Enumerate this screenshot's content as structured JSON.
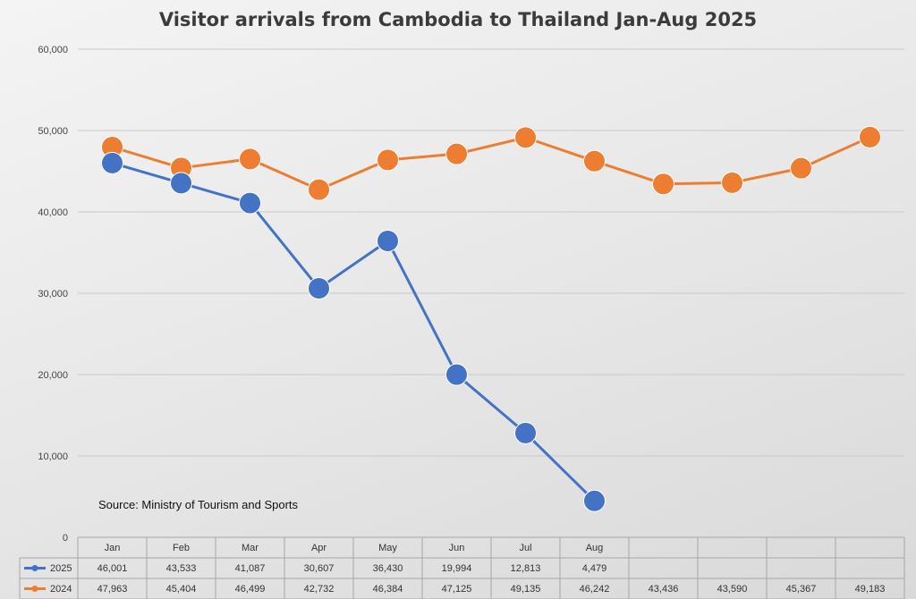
{
  "chart_data": {
    "type": "line",
    "title": "Visitor arrivals from Cambodia to Thailand Jan-Aug 2025",
    "categories": [
      "Jan",
      "Feb",
      "Mar",
      "Apr",
      "May",
      "Jun",
      "Jul",
      "Aug",
      "",
      "",
      "",
      ""
    ],
    "series": [
      {
        "name": "2025",
        "color": "#4472c4",
        "values": [
          46001,
          43533,
          41087,
          30607,
          36430,
          19994,
          12813,
          4479,
          null,
          null,
          null,
          null
        ],
        "labels": [
          "46,001",
          "43,533",
          "41,087",
          "30,607",
          "36,430",
          "19,994",
          "12,813",
          "4,479",
          "",
          "",
          "",
          ""
        ]
      },
      {
        "name": "2024",
        "color": "#ed7d31",
        "values": [
          47963,
          45404,
          46499,
          42732,
          46384,
          47125,
          49135,
          46242,
          43436,
          43590,
          45367,
          49183
        ],
        "labels": [
          "47,963",
          "45,404",
          "46,499",
          "42,732",
          "46,384",
          "47,125",
          "49,135",
          "46,242",
          "43,436",
          "43,590",
          "45,367",
          "49,183"
        ]
      }
    ],
    "ylim": [
      0,
      60000
    ],
    "yticks": [
      0,
      10000,
      20000,
      30000,
      40000,
      50000,
      60000
    ],
    "ytick_labels": [
      "0",
      "10,000",
      "20,000",
      "30,000",
      "40,000",
      "50,000",
      "60,000"
    ],
    "grid": true,
    "data_table": true,
    "annotation": "Source: Ministry of Tourism and Sports"
  }
}
